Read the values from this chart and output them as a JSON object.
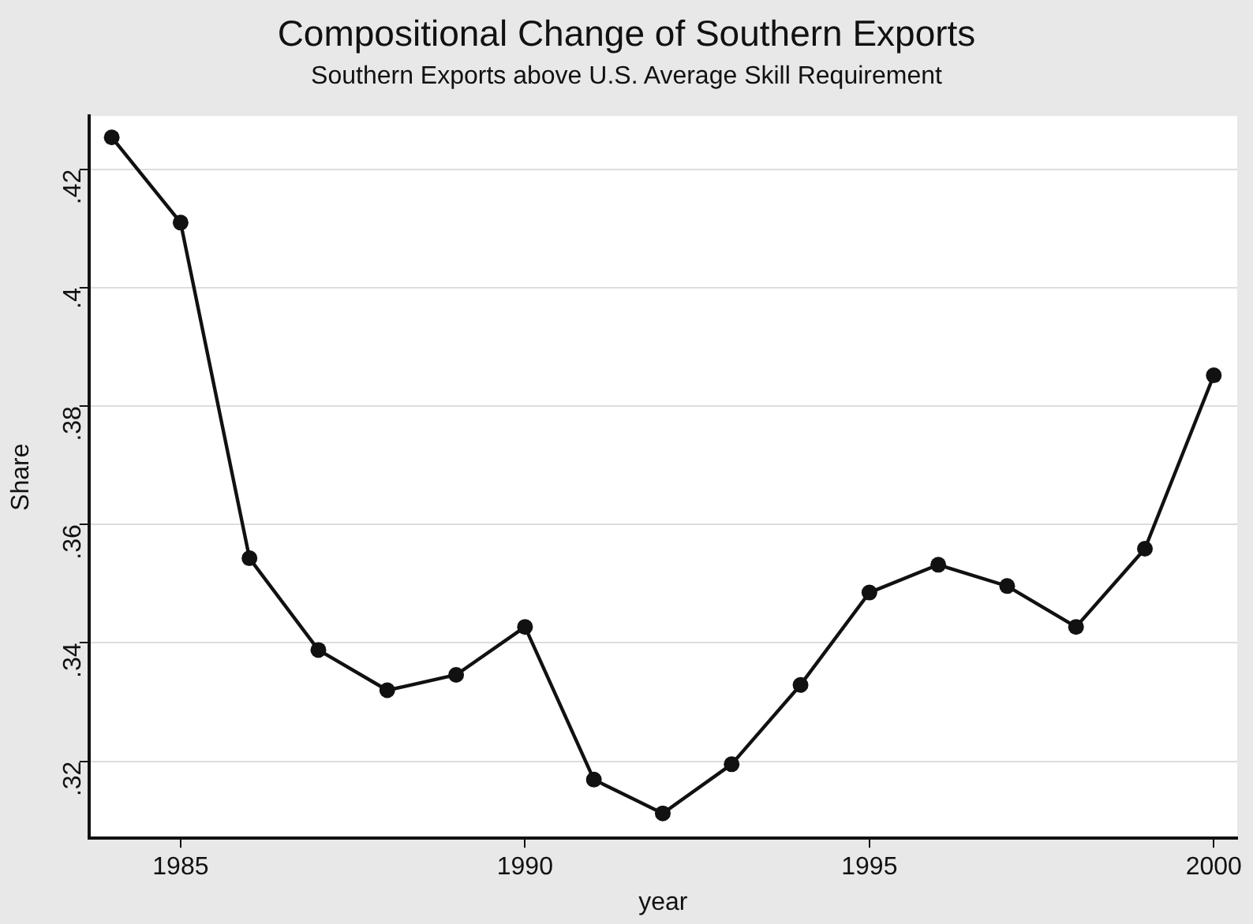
{
  "chart_data": {
    "type": "line",
    "title": "Compositional Change of Southern Exports",
    "subtitle": "Southern Exports above U.S. Average Skill Requirement",
    "xlabel": "year",
    "ylabel": "Share",
    "x": [
      1984,
      1985,
      1986,
      1987,
      1988,
      1989,
      1990,
      1991,
      1992,
      1993,
      1994,
      1995,
      1996,
      1997,
      1998,
      1999,
      2000
    ],
    "series": [
      {
        "color": "#111111",
        "values": [
          0.4254,
          0.411,
          0.3543,
          0.3388,
          0.332,
          0.3346,
          0.3427,
          0.3169,
          0.3112,
          0.3195,
          0.3329,
          0.3485,
          0.3532,
          0.3496,
          0.3427,
          0.3559,
          0.3852
        ]
      }
    ],
    "xlim": [
      1983.67,
      2000.34
    ],
    "xticks": [
      1985,
      1990,
      1995,
      2000
    ],
    "ylim": [
      0.307,
      0.429
    ],
    "yticks": [
      {
        "value": 0.32,
        "label": ".32"
      },
      {
        "value": 0.34,
        "label": ".34"
      },
      {
        "value": 0.36,
        "label": ".36"
      },
      {
        "value": 0.38,
        "label": ".38"
      },
      {
        "value": 0.4,
        "label": ".4"
      },
      {
        "value": 0.42,
        "label": ".42"
      }
    ],
    "grid": "y",
    "legend": false,
    "marker": "circle",
    "line_style": "solid"
  }
}
